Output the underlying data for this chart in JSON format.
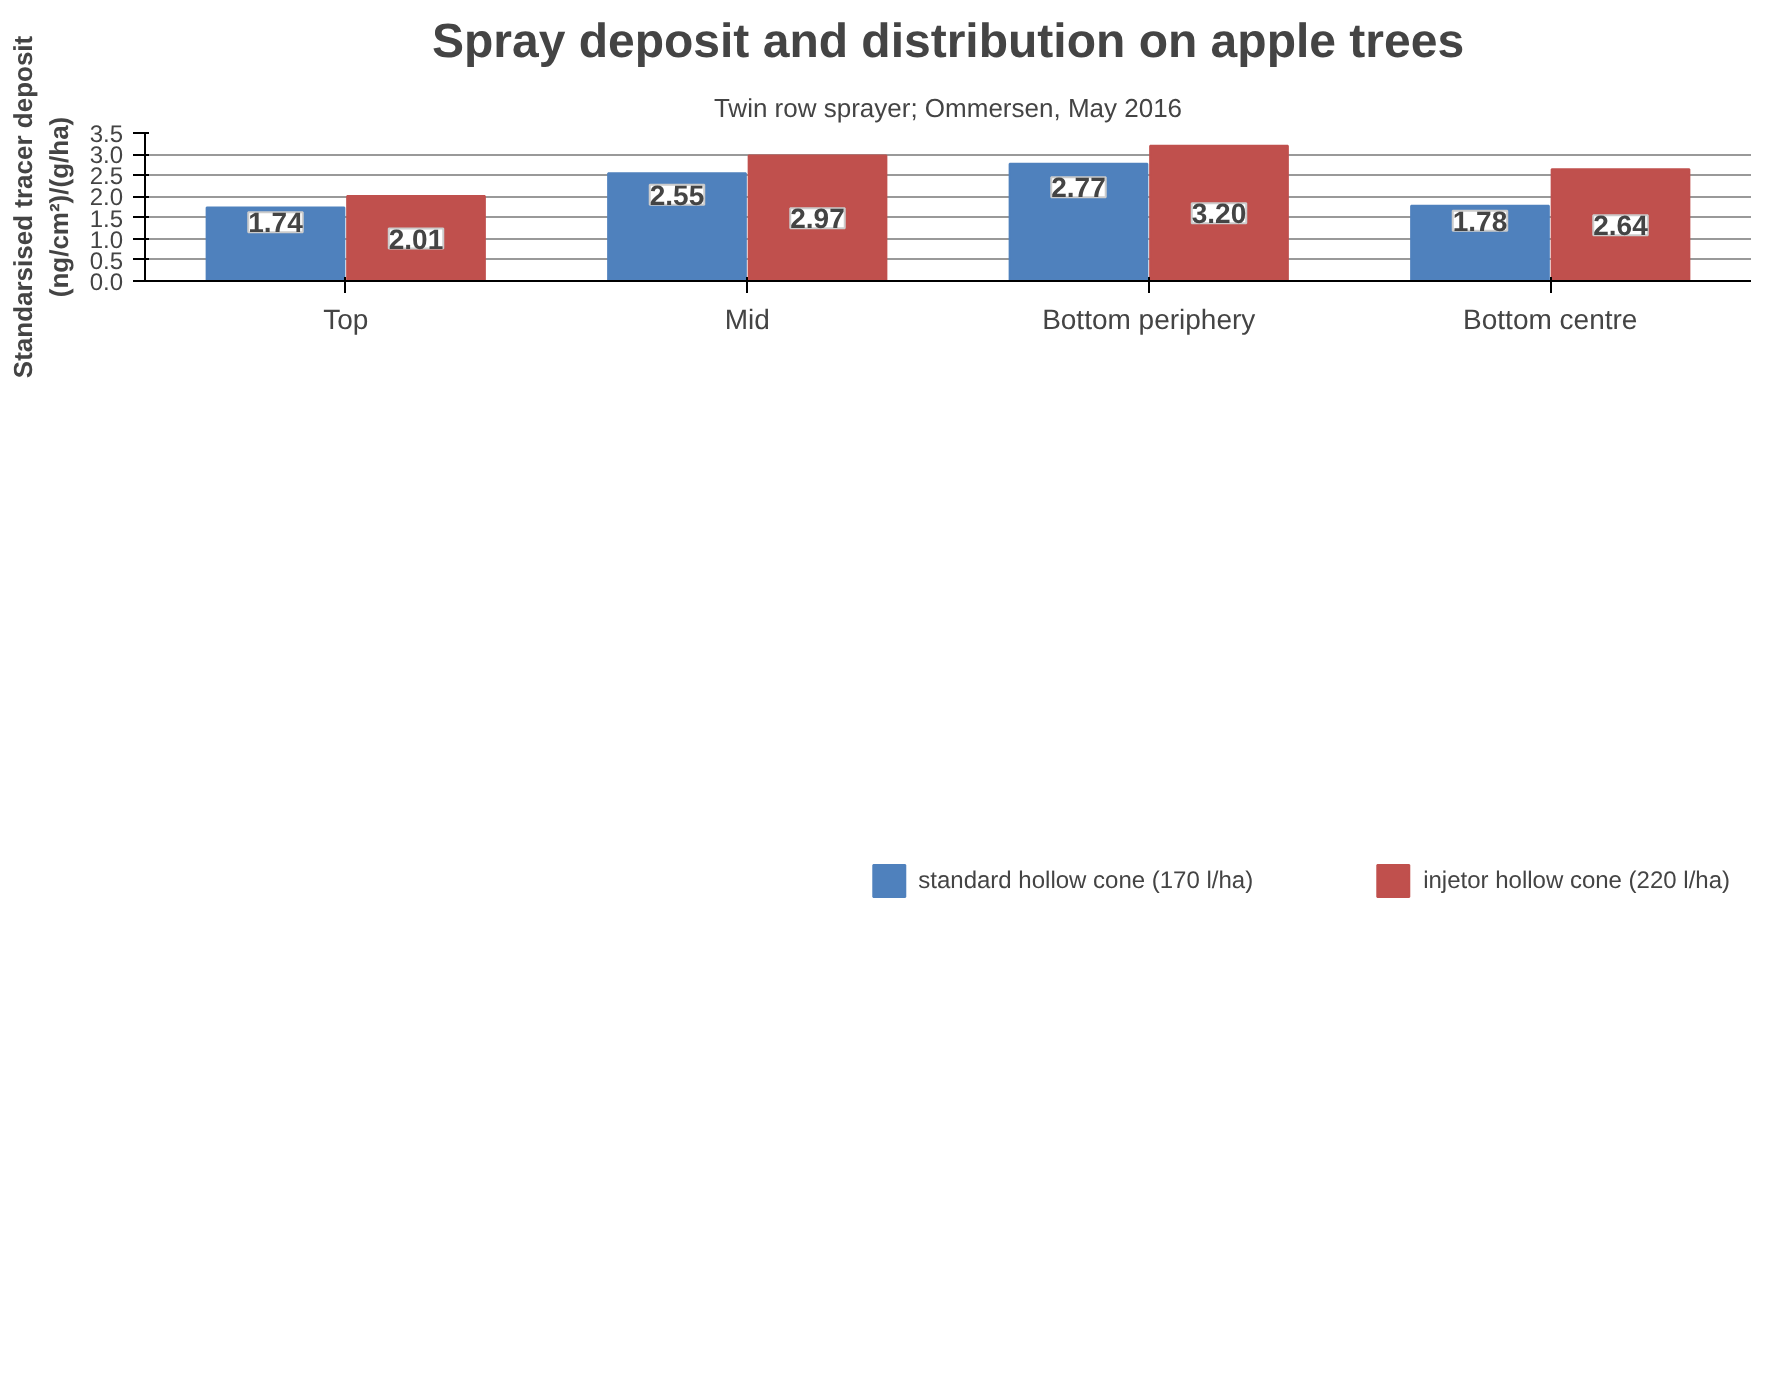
{
  "chart_data": {
    "type": "bar",
    "title": "Spray deposit and distribution on apple trees",
    "subtitle": "Twin row sprayer; Ommersen, May 2016",
    "ylabel": "Standarsised tracer deposit\n(ng/cm²)/(g/ha)",
    "categories": [
      "Top",
      "Mid",
      "Bottom periphery",
      "Bottom centre"
    ],
    "series": [
      {
        "name": "standard hollow cone (170 l/ha)",
        "color": "#4f81bd",
        "values": [
          1.74,
          2.55,
          2.77,
          1.78
        ],
        "value_labels": [
          "1.74",
          "2.55",
          "2.77",
          "1.78"
        ]
      },
      {
        "name": "injetor hollow cone (220 l/ha)",
        "color": "#c0504d",
        "values": [
          2.01,
          2.97,
          3.2,
          2.64
        ],
        "value_labels": [
          "2.01",
          "2.97",
          "3.20",
          "2.64"
        ]
      }
    ],
    "ylim": [
      0,
      3.5
    ],
    "yticks": [
      {
        "value": 0,
        "label": "0.0"
      },
      {
        "value": 0.5,
        "label": "0.5"
      },
      {
        "value": 1,
        "label": "1.0"
      },
      {
        "value": 1.5,
        "label": "1.5"
      },
      {
        "value": 2,
        "label": "2.0"
      },
      {
        "value": 2.5,
        "label": "2.5"
      },
      {
        "value": 3,
        "label": "3.0"
      },
      {
        "value": 3.5,
        "label": "3.5"
      }
    ],
    "grid": "y",
    "legend": "bottom"
  }
}
